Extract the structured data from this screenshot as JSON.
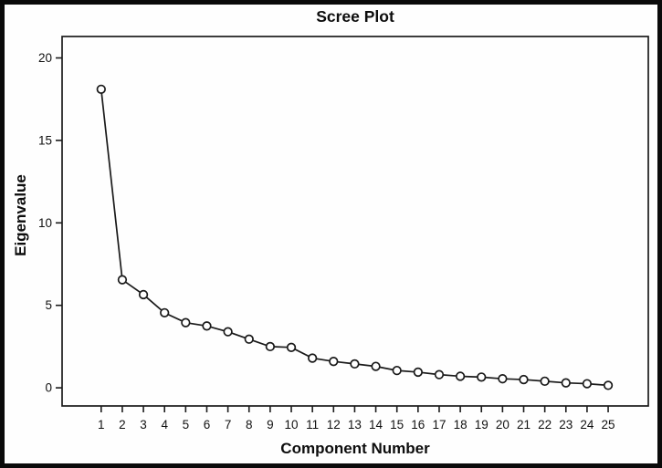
{
  "chart_data": {
    "type": "line",
    "title": "Scree Plot",
    "xlabel": "Component Number",
    "ylabel": "Eigenvalue",
    "x": [
      1,
      2,
      3,
      4,
      5,
      6,
      7,
      8,
      9,
      10,
      11,
      12,
      13,
      14,
      15,
      16,
      17,
      18,
      19,
      20,
      21,
      22,
      23,
      24,
      25
    ],
    "values": [
      18.1,
      6.55,
      5.65,
      4.55,
      3.95,
      3.75,
      3.4,
      2.95,
      2.5,
      2.45,
      1.8,
      1.6,
      1.45,
      1.3,
      1.05,
      0.95,
      0.8,
      0.7,
      0.65,
      0.55,
      0.5,
      0.4,
      0.3,
      0.25,
      0.15
    ],
    "yticks": [
      0,
      5,
      10,
      15,
      20
    ],
    "xlim": [
      -0.85,
      26.9
    ],
    "ylim": [
      -1.1,
      21.3
    ],
    "grid": false,
    "legend": "none",
    "marker": "open-circle",
    "colors": {
      "line": "#1a1a1a",
      "marker_fill": "#ffffff",
      "frame": "#1a1a1a",
      "text": "#0d0d0d",
      "background": "#fefefe"
    }
  }
}
